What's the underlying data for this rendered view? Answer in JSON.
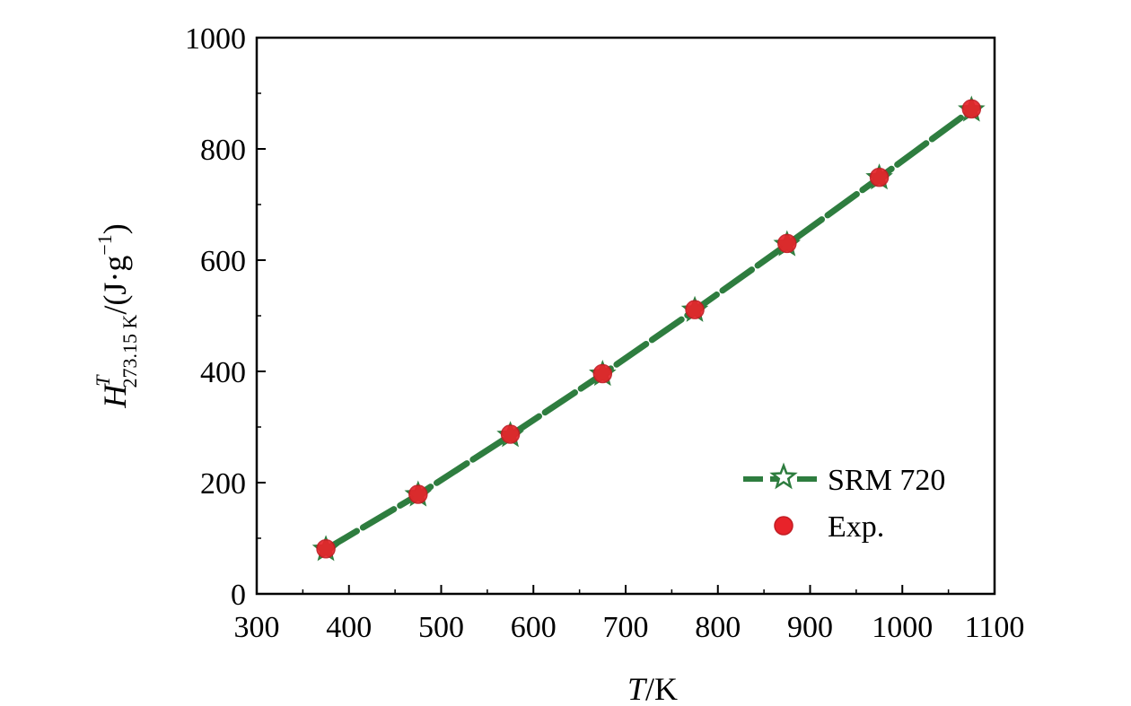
{
  "chart_data": {
    "type": "line",
    "title": "",
    "xlabel": "T/K",
    "xlabel_parts": {
      "italic": "T",
      "rest": "/K"
    },
    "ylabel": "H^T_273.15 K/(J·g^-1)",
    "ylabel_parts": {
      "main": "H",
      "sup": "T",
      "sub": "273.15 K",
      "unit_open": "/(J·g",
      "unit_exp": "−1",
      "unit_close": ")"
    },
    "xlim": [
      300,
      1100
    ],
    "ylim": [
      0,
      1000
    ],
    "xticks": [
      300,
      400,
      500,
      600,
      700,
      800,
      900,
      1000,
      1100
    ],
    "yticks": [
      0,
      200,
      400,
      600,
      800,
      1000
    ],
    "grid": false,
    "legend_position": "bottom-right",
    "series": [
      {
        "name": "SRM 720",
        "style": "dashed-line-star",
        "color": "#2e7d3f",
        "x": [
          375,
          475,
          575,
          675,
          775,
          875,
          975,
          1075
        ],
        "y": [
          80,
          178,
          285,
          395,
          510,
          628,
          748,
          870
        ]
      },
      {
        "name": "Exp.",
        "style": "circle",
        "color": "#e8232a",
        "x": [
          375,
          475,
          575,
          675,
          775,
          875,
          975,
          1075
        ],
        "y": [
          81,
          179,
          287,
          396,
          511,
          630,
          749,
          872
        ]
      }
    ]
  }
}
